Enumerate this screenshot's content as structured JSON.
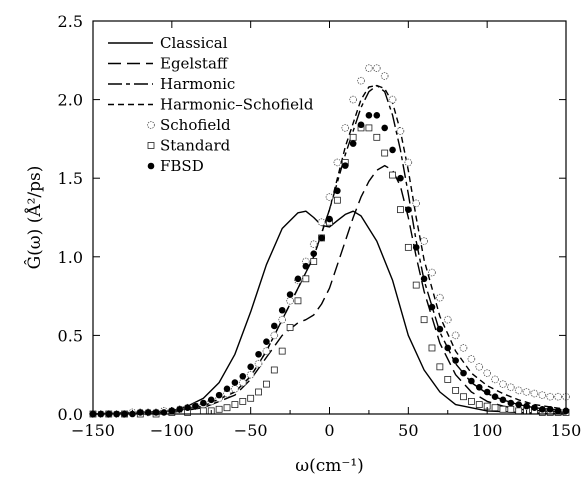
{
  "chart_data": {
    "type": "line",
    "xlabel": "ω(cm⁻¹)",
    "ylabel": "Ĝ(ω) (Å²/ps)",
    "xlim": [
      -150,
      150
    ],
    "ylim": [
      0,
      2.5
    ],
    "xticks": [
      -150,
      -100,
      -50,
      0,
      50,
      100,
      150
    ],
    "yticks": [
      0.0,
      0.5,
      1.0,
      1.5,
      2.0,
      2.5
    ],
    "xtick_labels": [
      "−150",
      "−100",
      "−50",
      "0",
      "50",
      "100",
      "150"
    ],
    "ytick_labels": [
      "0.0",
      "0.5",
      "1.0",
      "1.5",
      "2.0",
      "2.5"
    ],
    "grid": false,
    "legend_position": "top-left",
    "series": [
      {
        "name": "Classical",
        "style": "solid",
        "x": [
          -150,
          -120,
          -100,
          -90,
          -80,
          -70,
          -60,
          -50,
          -40,
          -30,
          -20,
          -15,
          -10,
          -5,
          0,
          5,
          10,
          15,
          20,
          30,
          40,
          50,
          60,
          70,
          80,
          100,
          120,
          150
        ],
        "y": [
          0.0,
          0.01,
          0.02,
          0.05,
          0.1,
          0.2,
          0.38,
          0.65,
          0.95,
          1.18,
          1.28,
          1.29,
          1.25,
          1.2,
          1.19,
          1.23,
          1.27,
          1.29,
          1.26,
          1.1,
          0.85,
          0.5,
          0.28,
          0.14,
          0.06,
          0.02,
          0.01,
          0.0
        ]
      },
      {
        "name": "Egelstaff",
        "style": "long-dash",
        "x": [
          -150,
          -100,
          -80,
          -60,
          -50,
          -40,
          -30,
          -20,
          -15,
          -10,
          -5,
          0,
          5,
          10,
          15,
          20,
          25,
          30,
          35,
          40,
          45,
          50,
          55,
          60,
          70,
          80,
          90,
          100,
          110,
          120,
          150
        ],
        "y": [
          0.0,
          0.01,
          0.04,
          0.12,
          0.22,
          0.36,
          0.5,
          0.58,
          0.6,
          0.63,
          0.7,
          0.8,
          0.95,
          1.1,
          1.25,
          1.38,
          1.48,
          1.55,
          1.58,
          1.55,
          1.45,
          1.25,
          1.0,
          0.78,
          0.45,
          0.25,
          0.14,
          0.08,
          0.05,
          0.03,
          0.01
        ]
      },
      {
        "name": "Harmonic",
        "style": "dash-dot",
        "x": [
          -150,
          -100,
          -80,
          -60,
          -50,
          -40,
          -30,
          -20,
          -10,
          0,
          10,
          20,
          25,
          30,
          35,
          40,
          45,
          50,
          55,
          60,
          70,
          80,
          90,
          100,
          110,
          120,
          130,
          150
        ],
        "y": [
          0.0,
          0.02,
          0.05,
          0.14,
          0.24,
          0.4,
          0.6,
          0.8,
          1.0,
          1.3,
          1.65,
          1.95,
          2.05,
          2.09,
          2.05,
          1.9,
          1.68,
          1.4,
          1.1,
          0.85,
          0.52,
          0.32,
          0.2,
          0.13,
          0.09,
          0.06,
          0.04,
          0.02
        ]
      },
      {
        "name": "Harmonic–Schofield",
        "style": "short-dash",
        "x": [
          -150,
          -100,
          -80,
          -60,
          -50,
          -40,
          -30,
          -20,
          -10,
          0,
          10,
          20,
          25,
          30,
          35,
          40,
          45,
          50,
          55,
          60,
          70,
          80,
          90,
          100,
          110,
          120,
          130,
          150
        ],
        "y": [
          0.0,
          0.02,
          0.05,
          0.14,
          0.24,
          0.4,
          0.6,
          0.8,
          1.0,
          1.3,
          1.7,
          2.0,
          2.08,
          2.09,
          2.07,
          1.98,
          1.8,
          1.55,
          1.25,
          0.98,
          0.62,
          0.4,
          0.26,
          0.18,
          0.13,
          0.09,
          0.06,
          0.03
        ]
      },
      {
        "name": "Schofield",
        "marker": "open-circle",
        "x": [
          -150,
          -145,
          -140,
          -135,
          -130,
          -125,
          -120,
          -115,
          -110,
          -105,
          -100,
          -95,
          -90,
          -85,
          -80,
          -75,
          -70,
          -65,
          -60,
          -55,
          -50,
          -45,
          -40,
          -35,
          -30,
          -25,
          -20,
          -15,
          -10,
          -5,
          0,
          5,
          10,
          15,
          20,
          25,
          30,
          35,
          40,
          45,
          50,
          55,
          60,
          65,
          70,
          75,
          80,
          85,
          90,
          95,
          100,
          105,
          110,
          115,
          120,
          125,
          130,
          135,
          140,
          145,
          150
        ],
        "y": [
          0.0,
          0.0,
          0.0,
          0.0,
          0.0,
          0.01,
          0.01,
          0.01,
          0.01,
          0.02,
          0.02,
          0.03,
          0.04,
          0.05,
          0.06,
          0.08,
          0.1,
          0.13,
          0.16,
          0.2,
          0.25,
          0.32,
          0.4,
          0.5,
          0.6,
          0.72,
          0.85,
          0.97,
          1.08,
          1.22,
          1.38,
          1.6,
          1.82,
          2.0,
          2.12,
          2.2,
          2.2,
          2.15,
          2.0,
          1.8,
          1.6,
          1.34,
          1.1,
          0.9,
          0.74,
          0.6,
          0.5,
          0.42,
          0.35,
          0.3,
          0.26,
          0.22,
          0.19,
          0.17,
          0.15,
          0.14,
          0.13,
          0.12,
          0.11,
          0.11,
          0.11
        ]
      },
      {
        "name": "Standard",
        "marker": "open-square",
        "x": [
          -150,
          -140,
          -130,
          -120,
          -110,
          -100,
          -90,
          -80,
          -75,
          -70,
          -65,
          -60,
          -55,
          -50,
          -45,
          -40,
          -35,
          -30,
          -25,
          -20,
          -15,
          -10,
          -5,
          0,
          5,
          10,
          15,
          20,
          25,
          30,
          35,
          40,
          45,
          50,
          55,
          60,
          65,
          70,
          75,
          80,
          85,
          90,
          95,
          100,
          105,
          110,
          115,
          120,
          125,
          130,
          135,
          140,
          145,
          150
        ],
        "y": [
          0.0,
          0.0,
          0.0,
          0.0,
          0.0,
          0.01,
          0.01,
          0.02,
          0.02,
          0.03,
          0.04,
          0.06,
          0.08,
          0.1,
          0.14,
          0.19,
          0.28,
          0.4,
          0.55,
          0.72,
          0.86,
          0.97,
          1.12,
          1.22,
          1.36,
          1.6,
          1.76,
          1.82,
          1.82,
          1.76,
          1.66,
          1.52,
          1.3,
          1.06,
          0.82,
          0.6,
          0.42,
          0.3,
          0.22,
          0.15,
          0.11,
          0.08,
          0.06,
          0.05,
          0.04,
          0.03,
          0.03,
          0.02,
          0.02,
          0.02,
          0.01,
          0.01,
          0.01,
          0.01
        ]
      },
      {
        "name": "FBSD",
        "marker": "filled-circle",
        "x": [
          -150,
          -145,
          -140,
          -135,
          -130,
          -125,
          -120,
          -115,
          -110,
          -105,
          -100,
          -95,
          -90,
          -85,
          -80,
          -75,
          -70,
          -65,
          -60,
          -55,
          -50,
          -45,
          -40,
          -35,
          -30,
          -25,
          -20,
          -15,
          -10,
          -5,
          0,
          5,
          10,
          15,
          20,
          25,
          30,
          35,
          40,
          45,
          50,
          55,
          60,
          65,
          70,
          75,
          80,
          85,
          90,
          95,
          100,
          105,
          110,
          115,
          120,
          125,
          130,
          135,
          140,
          145,
          150
        ],
        "y": [
          0.0,
          0.0,
          0.0,
          0.0,
          0.0,
          0.0,
          0.01,
          0.01,
          0.01,
          0.01,
          0.02,
          0.03,
          0.04,
          0.05,
          0.07,
          0.09,
          0.12,
          0.16,
          0.2,
          0.24,
          0.3,
          0.38,
          0.46,
          0.56,
          0.66,
          0.76,
          0.86,
          0.94,
          1.02,
          1.12,
          1.24,
          1.42,
          1.58,
          1.72,
          1.84,
          1.9,
          1.9,
          1.82,
          1.68,
          1.5,
          1.3,
          1.06,
          0.86,
          0.68,
          0.54,
          0.42,
          0.34,
          0.26,
          0.21,
          0.17,
          0.14,
          0.11,
          0.09,
          0.07,
          0.06,
          0.05,
          0.04,
          0.03,
          0.03,
          0.02,
          0.02
        ]
      }
    ]
  }
}
